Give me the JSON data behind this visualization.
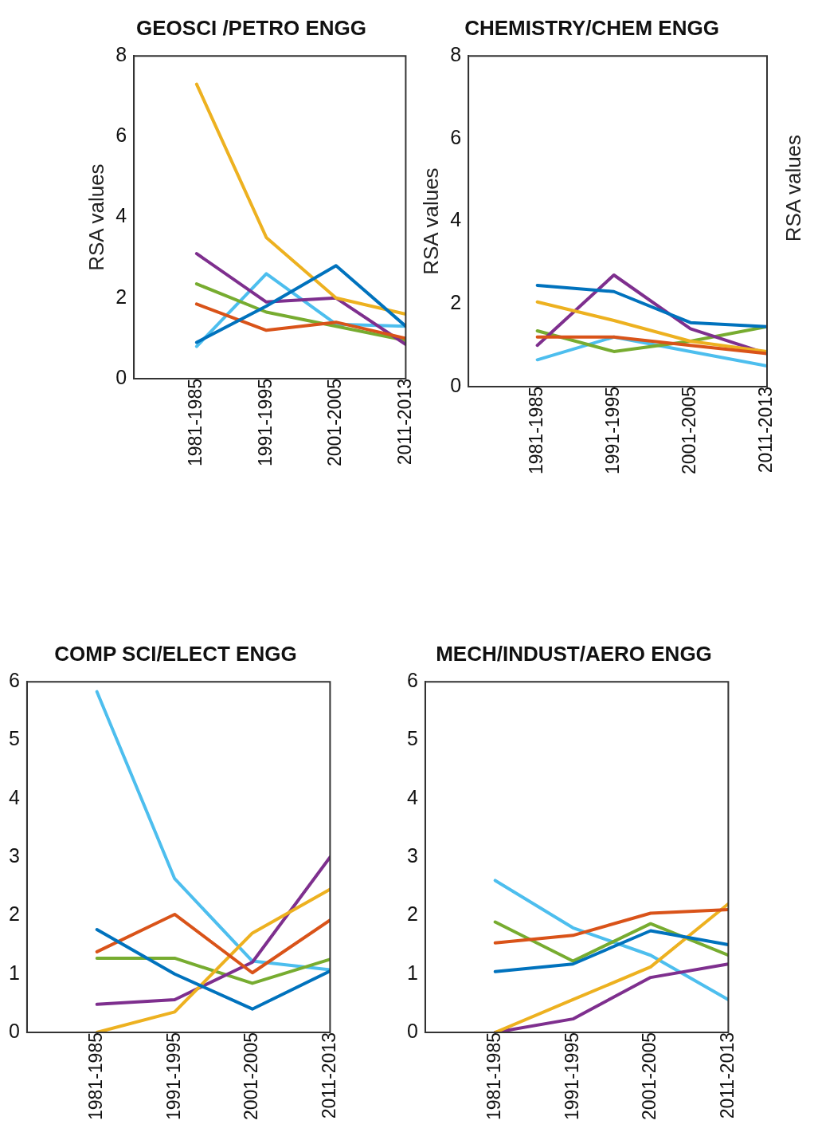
{
  "chart_data": [
    {
      "type": "line",
      "title": "GEOSCI /PETRO ENGG",
      "ylabel": "RSA values",
      "categories": [
        "1981-1985",
        "1991-1995",
        "2001-2005",
        "2011-2013"
      ],
      "ylim": [
        0,
        8
      ],
      "yticks": [
        0,
        2,
        4,
        6,
        8
      ],
      "grid": false,
      "legend": false,
      "marker": "none",
      "line_style": "solid",
      "series": [
        {
          "color": "#0072bd",
          "values": [
            0.9,
            1.8,
            2.8,
            1.3
          ]
        },
        {
          "color": "#d95319",
          "values": [
            1.85,
            1.2,
            1.4,
            1.0
          ]
        },
        {
          "color": "#edb120",
          "values": [
            7.3,
            3.5,
            2.0,
            1.6
          ]
        },
        {
          "color": "#7e2f8e",
          "values": [
            3.1,
            1.9,
            2.0,
            0.85
          ]
        },
        {
          "color": "#77ac30",
          "values": [
            2.35,
            1.65,
            1.3,
            0.95
          ]
        },
        {
          "color": "#4dbeee",
          "values": [
            0.8,
            2.6,
            1.35,
            1.3
          ]
        }
      ]
    },
    {
      "type": "line",
      "title": "CHEMISTRY/CHEM ENGG",
      "ylabel": "RSA values",
      "annotations": [
        "RSA values"
      ],
      "categories": [
        "1981-1985",
        "1991-1995",
        "2001-2005",
        "2011-2013"
      ],
      "ylim": [
        0,
        8
      ],
      "yticks": [
        0,
        2,
        4,
        6,
        8
      ],
      "grid": false,
      "legend": false,
      "marker": "none",
      "line_style": "solid",
      "series": [
        {
          "color": "#0072bd",
          "values": [
            2.45,
            2.3,
            1.55,
            1.45
          ]
        },
        {
          "color": "#d95319",
          "values": [
            1.2,
            1.2,
            1.0,
            0.8
          ]
        },
        {
          "color": "#edb120",
          "values": [
            2.05,
            1.6,
            1.1,
            0.85
          ]
        },
        {
          "color": "#7e2f8e",
          "values": [
            1.0,
            2.7,
            1.4,
            0.8
          ]
        },
        {
          "color": "#77ac30",
          "values": [
            1.35,
            0.85,
            1.1,
            1.45
          ]
        },
        {
          "color": "#4dbeee",
          "values": [
            0.65,
            1.2,
            0.85,
            0.5
          ]
        }
      ]
    },
    {
      "type": "line",
      "title": "COMP SCI/ELECT ENGG",
      "categories": [
        "1981-1985",
        "1991-1995",
        "2001-2005",
        "2011-2013"
      ],
      "ylim": [
        0,
        6
      ],
      "yticks": [
        0,
        1,
        2,
        3,
        4,
        5,
        6
      ],
      "grid": false,
      "legend": false,
      "marker": "none",
      "line_style": "solid",
      "series": [
        {
          "color": "#0072bd",
          "values": [
            1.76,
            1.0,
            0.4,
            1.05
          ]
        },
        {
          "color": "#d95319",
          "values": [
            1.38,
            2.02,
            1.02,
            1.92
          ]
        },
        {
          "color": "#edb120",
          "values": [
            0,
            0.35,
            1.7,
            2.45
          ]
        },
        {
          "color": "#7e2f8e",
          "values": [
            0.48,
            0.56,
            1.2,
            3.0
          ]
        },
        {
          "color": "#77ac30",
          "values": [
            1.27,
            1.27,
            0.84,
            1.25
          ]
        },
        {
          "color": "#4dbeee",
          "values": [
            5.83,
            2.63,
            1.22,
            1.07
          ]
        }
      ]
    },
    {
      "type": "line",
      "title": "MECH/INDUST/AERO ENGG",
      "categories": [
        "1981-1985",
        "1991-1995",
        "2001-2005",
        "2011-2013"
      ],
      "ylim": [
        0,
        6
      ],
      "yticks": [
        0,
        1,
        2,
        3,
        4,
        5,
        6
      ],
      "grid": false,
      "legend": false,
      "marker": "none",
      "line_style": "solid",
      "series": [
        {
          "color": "#0072bd",
          "values": [
            1.04,
            1.17,
            1.74,
            1.5
          ]
        },
        {
          "color": "#d95319",
          "values": [
            1.53,
            1.66,
            2.04,
            2.1
          ]
        },
        {
          "color": "#edb120",
          "values": [
            0,
            0.56,
            1.12,
            2.2
          ]
        },
        {
          "color": "#7e2f8e",
          "values": [
            0,
            0.23,
            0.94,
            1.17
          ]
        },
        {
          "color": "#77ac30",
          "values": [
            1.89,
            1.22,
            1.86,
            1.32
          ]
        },
        {
          "color": "#4dbeee",
          "values": [
            2.6,
            1.79,
            1.32,
            0.56
          ]
        }
      ]
    }
  ]
}
